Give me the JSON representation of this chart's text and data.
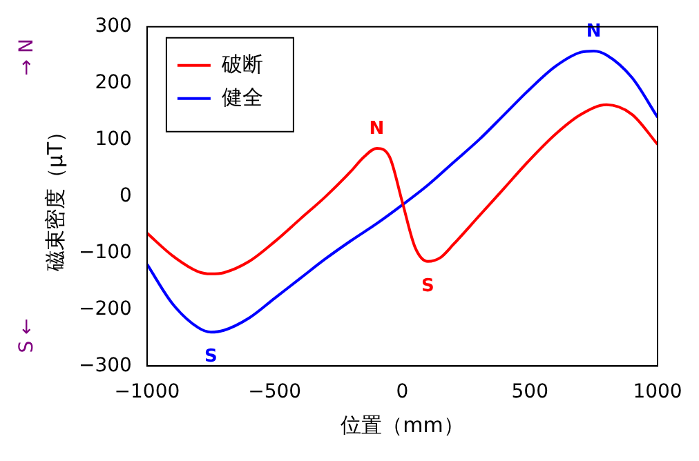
{
  "chart_data": {
    "type": "line",
    "xlabel": "位置（mm）",
    "ylabel": "磁束密度（μT）",
    "xlim": [
      -1000,
      1000
    ],
    "xticks": [
      -1000,
      -500,
      0,
      500,
      1000
    ],
    "ylim": [
      -300,
      300
    ],
    "yticks": [
      -300,
      -200,
      -100,
      0,
      100,
      200,
      300
    ],
    "grid": false,
    "legend": "top left",
    "marker": "none",
    "line_style": "solid",
    "series": [
      {
        "name": "破断",
        "color": "#ff0000",
        "x": [
          -1000,
          -900,
          -800,
          -750,
          -700,
          -600,
          -500,
          -400,
          -300,
          -200,
          -150,
          -100,
          -50,
          0,
          50,
          100,
          150,
          200,
          300,
          400,
          500,
          600,
          700,
          800,
          900,
          1000
        ],
        "values": [
          -65,
          -105,
          -133,
          -137,
          -135,
          -115,
          -80,
          -40,
          0,
          45,
          70,
          85,
          70,
          -10,
          -90,
          -115,
          -108,
          -85,
          -35,
          15,
          65,
          110,
          145,
          162,
          145,
          92
        ]
      },
      {
        "name": "健全",
        "color": "#0000ff",
        "x": [
          -1000,
          -900,
          -800,
          -750,
          -700,
          -600,
          -500,
          -400,
          -300,
          -200,
          -100,
          0,
          100,
          200,
          300,
          400,
          500,
          600,
          700,
          750,
          800,
          900,
          1000
        ],
        "values": [
          -120,
          -190,
          -232,
          -240,
          -237,
          -215,
          -180,
          -145,
          -110,
          -78,
          -48,
          -15,
          20,
          60,
          100,
          145,
          190,
          230,
          255,
          257,
          250,
          210,
          140
        ]
      }
    ],
    "annotations": [
      {
        "text": "N",
        "x": -100,
        "y": 85
      },
      {
        "text": "S",
        "x": 100,
        "y": -115
      },
      {
        "text": "N",
        "x": 750,
        "y": 257
      },
      {
        "text": "S",
        "x": -750,
        "y": -240
      },
      "→ N",
      "S ←"
    ]
  }
}
